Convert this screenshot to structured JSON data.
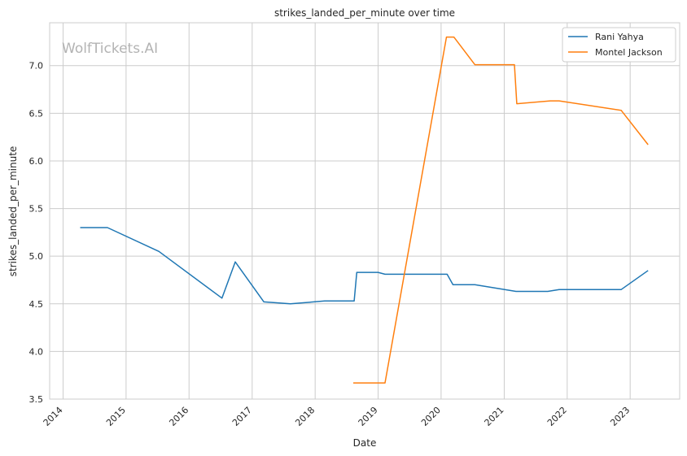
{
  "chart_data": {
    "type": "line",
    "title": "strikes_landed_per_minute over time",
    "xlabel": "Date",
    "ylabel": "strikes_landed_per_minute",
    "watermark": "WolfTickets.AI",
    "xlim": [
      "2013-10-15",
      "2023-10-15"
    ],
    "ylim": [
      3.5,
      7.45
    ],
    "x_ticks": [
      "2014",
      "2015",
      "2016",
      "2017",
      "2018",
      "2019",
      "2020",
      "2021",
      "2022",
      "2023"
    ],
    "y_ticks": [
      3.5,
      4.0,
      4.5,
      5.0,
      5.5,
      6.0,
      6.5,
      7.0
    ],
    "grid": true,
    "legend_position": "top-right",
    "series": [
      {
        "name": "Rani Yahya",
        "color": "#1f77b4",
        "x": [
          "2014-04-10",
          "2014-09-15",
          "2015-07-10",
          "2016-07-10",
          "2016-09-25",
          "2017-03-10",
          "2017-08-10",
          "2018-02-25",
          "2018-08-15",
          "2018-08-30",
          "2019-01-01",
          "2019-02-10",
          "2020-02-05",
          "2020-03-10",
          "2020-07-15",
          "2021-03-10",
          "2021-09-10",
          "2021-11-15",
          "2022-11-10",
          "2023-04-15"
        ],
        "values": [
          5.3,
          5.3,
          5.05,
          4.56,
          4.94,
          4.52,
          4.5,
          4.53,
          4.53,
          4.83,
          4.83,
          4.81,
          4.81,
          4.7,
          4.7,
          4.63,
          4.63,
          4.65,
          4.65,
          4.85
        ]
      },
      {
        "name": "Montel Jackson",
        "color": "#ff7f0e",
        "x": [
          "2018-08-10",
          "2019-02-10",
          "2020-02-01",
          "2020-03-15",
          "2020-07-15",
          "2021-03-01",
          "2021-03-15",
          "2021-09-25",
          "2021-11-15",
          "2022-11-10",
          "2023-04-15"
        ],
        "values": [
          3.67,
          3.67,
          7.3,
          7.3,
          7.01,
          7.01,
          6.6,
          6.63,
          6.63,
          6.53,
          6.17
        ]
      }
    ]
  }
}
